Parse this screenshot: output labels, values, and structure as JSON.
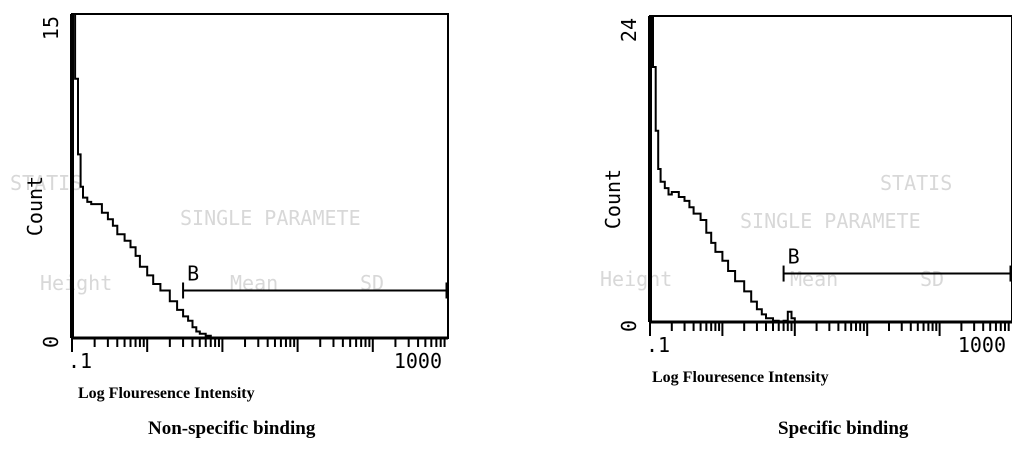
{
  "chart_data": [
    {
      "type": "line",
      "caption": "Non-specific binding",
      "xlabel": "Log  Flouresence Intensity",
      "ylabel": "Count",
      "y_max_label": "15",
      "y_zero_label": "0",
      "x_tick_labels": [
        ".1",
        "1000"
      ],
      "xscale": "log",
      "xlim": [
        0.1,
        10000
      ],
      "ylim": [
        0,
        15
      ],
      "gate": {
        "label": "B",
        "from": 3,
        "to": 10000,
        "level": 2.2
      },
      "x": [
        0.1,
        0.11,
        0.12,
        0.13,
        0.14,
        0.16,
        0.18,
        0.2,
        0.25,
        0.3,
        0.35,
        0.4,
        0.5,
        0.6,
        0.7,
        0.8,
        1.0,
        1.2,
        1.5,
        2.0,
        2.5,
        3.0,
        3.5,
        4.0,
        4.5,
        5.0,
        6.0,
        7.0
      ],
      "y": [
        15,
        12,
        8.5,
        7.0,
        6.5,
        6.3,
        6.2,
        6.2,
        5.8,
        5.5,
        5.2,
        4.8,
        4.5,
        4.2,
        3.8,
        3.3,
        2.9,
        2.5,
        2.2,
        1.7,
        1.3,
        1.0,
        0.8,
        0.5,
        0.3,
        0.2,
        0.1,
        0
      ]
    },
    {
      "type": "line",
      "caption": "Specific binding",
      "xlabel": "Log  Flouresence Intensity",
      "ylabel": "Count",
      "y_max_label": "24",
      "y_zero_label": "0",
      "x_tick_labels": [
        ".1",
        "1000"
      ],
      "xscale": "log",
      "xlim": [
        0.1,
        10000
      ],
      "ylim": [
        0,
        24
      ],
      "gate": {
        "label": "B",
        "from": 7,
        "to": 10000,
        "level": 3.8
      },
      "x": [
        0.1,
        0.11,
        0.12,
        0.13,
        0.14,
        0.16,
        0.18,
        0.2,
        0.25,
        0.3,
        0.35,
        0.4,
        0.5,
        0.6,
        0.7,
        0.8,
        1.0,
        1.2,
        1.5,
        2.0,
        2.5,
        3.0,
        3.5,
        4.0,
        5.0,
        6.0,
        7.0,
        8.0,
        9.0,
        10.0
      ],
      "y": [
        24,
        20,
        15,
        12,
        11,
        10.5,
        10,
        10.2,
        9.8,
        9.5,
        9.0,
        8.5,
        8.0,
        7.0,
        6.2,
        5.5,
        4.8,
        4.0,
        3.2,
        2.4,
        1.6,
        1.0,
        0.6,
        0.3,
        0.1,
        0.05,
        0.1,
        0.8,
        0.3,
        0
      ]
    }
  ],
  "background_ghost_text": [
    "STATIS",
    "SINGLE PARAMETE",
    "Height",
    "Mean",
    "SD"
  ]
}
